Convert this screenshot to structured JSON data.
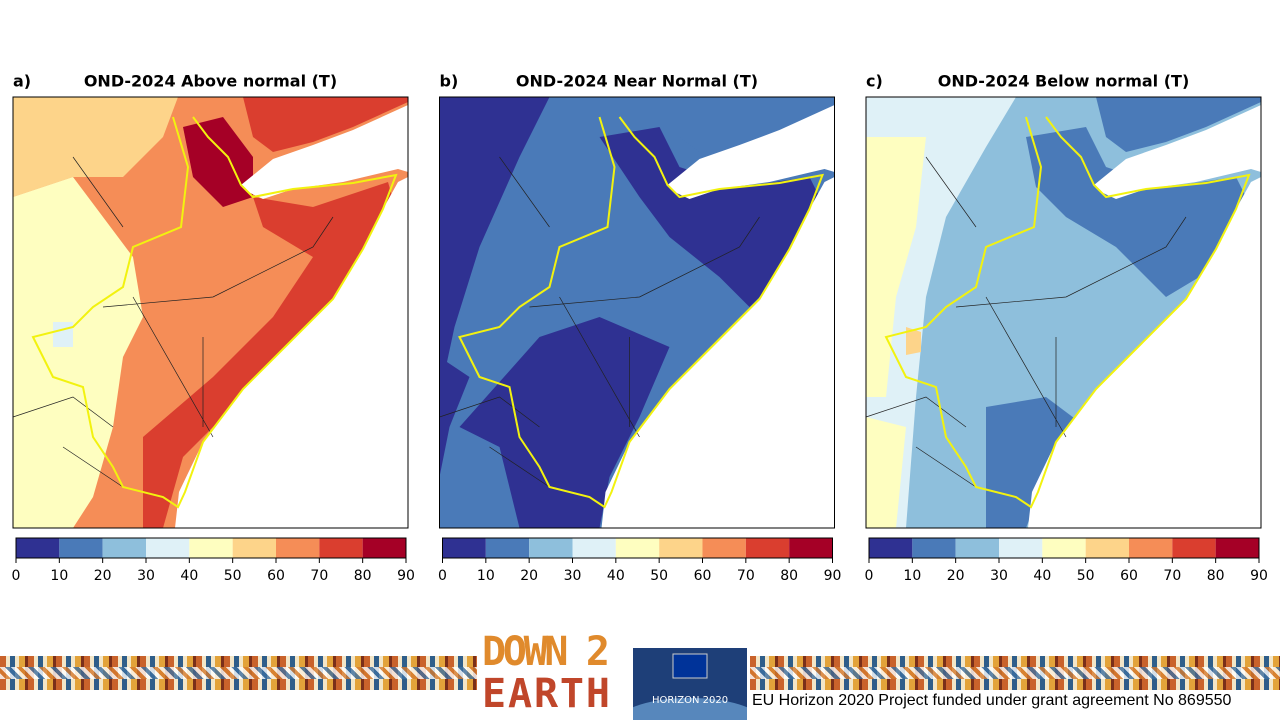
{
  "panels": [
    {
      "label": "a)",
      "title": "OND-2024 Above normal (T)"
    },
    {
      "label": "b)",
      "title": "OND-2024 Near Normal (T)"
    },
    {
      "label": "c)",
      "title": "OND-2024 Below normal (T)"
    }
  ],
  "colorbar": {
    "ticks": [
      0,
      10,
      20,
      30,
      40,
      50,
      60,
      70,
      80,
      90
    ],
    "colors": [
      "#2f3192",
      "#4a7ab8",
      "#8ebfdc",
      "#dff1f7",
      "#fefec0",
      "#fdd48a",
      "#f58d57",
      "#da3e2f",
      "#a50026"
    ]
  },
  "footer": {
    "logo_top": "DOWN 2",
    "logo_bottom": "EARTH",
    "horizon": "HORIZON 2020",
    "funding": "EU Horizon 2020 Project funded under grant agreement No 869550"
  }
}
